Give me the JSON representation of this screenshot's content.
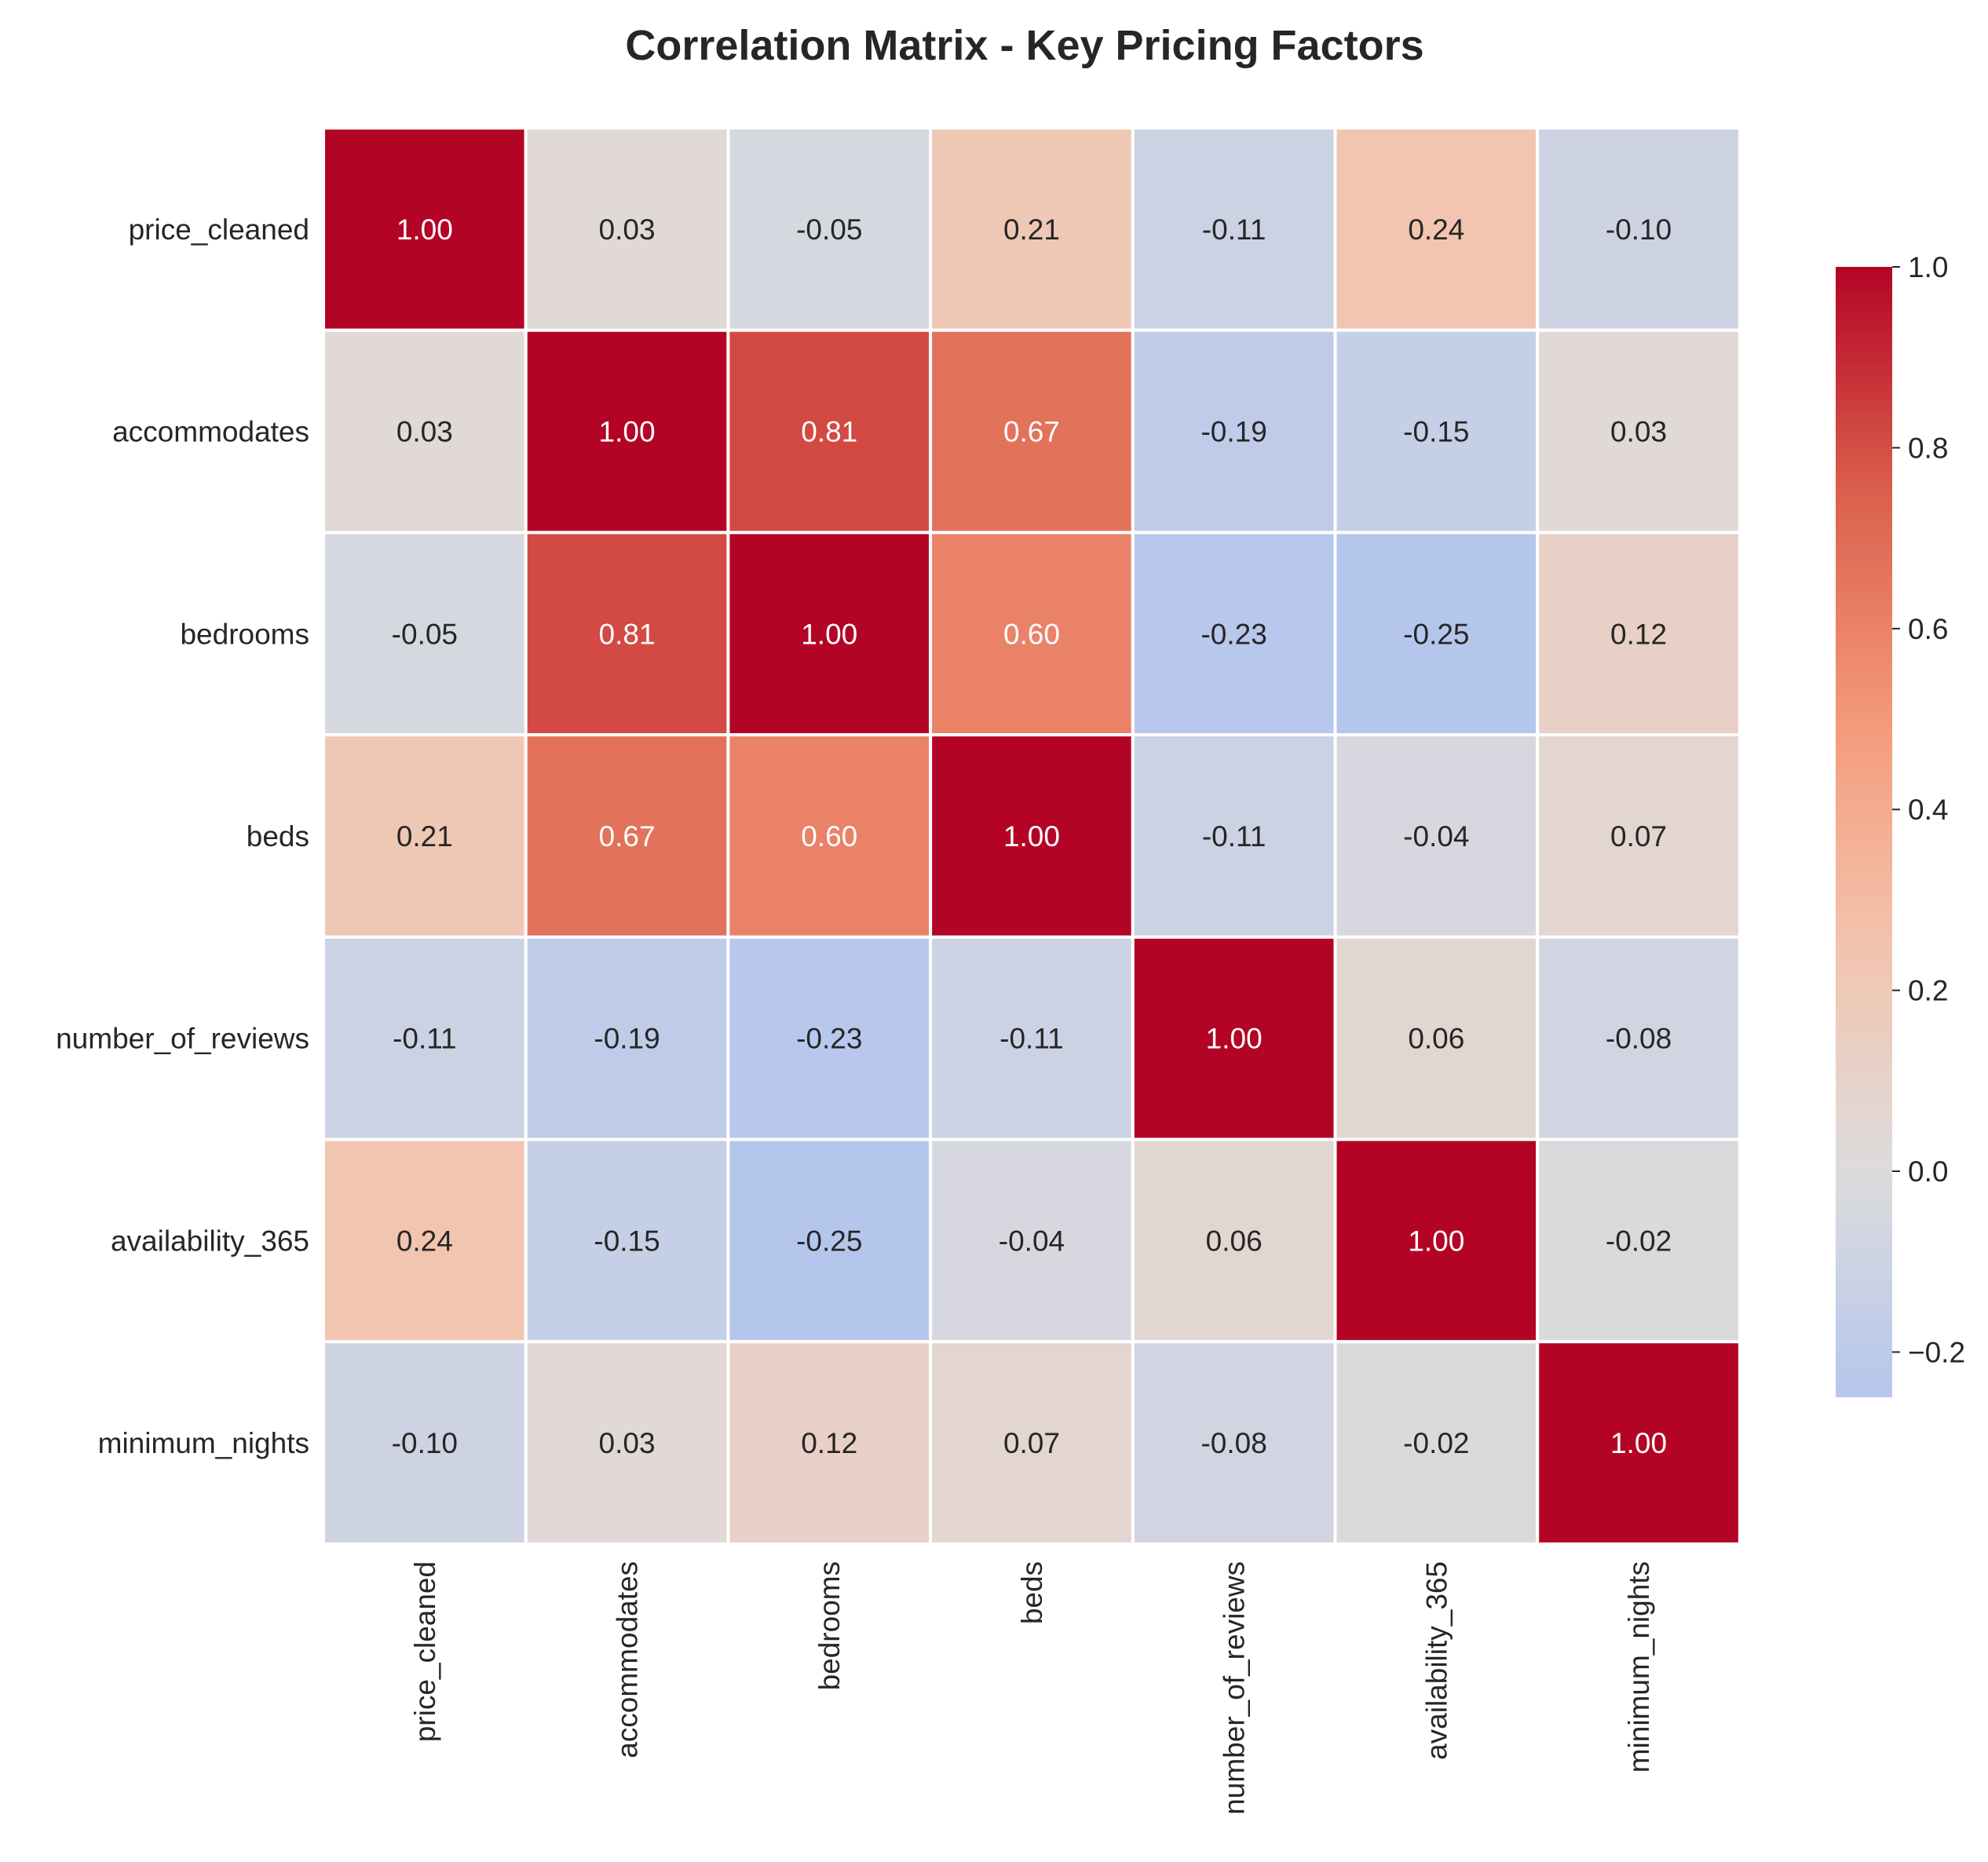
{
  "chart_data": {
    "type": "heatmap",
    "title": "Correlation Matrix - Key Pricing Factors",
    "xlabel": "",
    "ylabel": "",
    "variables": [
      "price_cleaned",
      "accommodates",
      "bedrooms",
      "beds",
      "number_of_reviews",
      "availability_365",
      "minimum_nights"
    ],
    "matrix": [
      [
        1.0,
        0.03,
        -0.05,
        0.21,
        -0.11,
        0.24,
        -0.1
      ],
      [
        0.03,
        1.0,
        0.81,
        0.67,
        -0.19,
        -0.15,
        0.03
      ],
      [
        -0.05,
        0.81,
        1.0,
        0.6,
        -0.23,
        -0.25,
        0.12
      ],
      [
        0.21,
        0.67,
        0.6,
        1.0,
        -0.11,
        -0.04,
        0.07
      ],
      [
        -0.11,
        -0.19,
        -0.23,
        -0.11,
        1.0,
        0.06,
        -0.08
      ],
      [
        0.24,
        -0.15,
        -0.25,
        -0.04,
        0.06,
        1.0,
        -0.02
      ],
      [
        -0.1,
        0.03,
        0.12,
        0.07,
        -0.08,
        -0.02,
        1.0
      ]
    ],
    "labels": [
      [
        "1.00",
        "0.03",
        "-0.05",
        "0.21",
        "-0.11",
        "0.24",
        "-0.10"
      ],
      [
        "0.03",
        "1.00",
        "0.81",
        "0.67",
        "-0.19",
        "-0.15",
        "0.03"
      ],
      [
        "-0.05",
        "0.81",
        "1.00",
        "0.60",
        "-0.23",
        "-0.25",
        "0.12"
      ],
      [
        "0.21",
        "0.67",
        "0.60",
        "1.00",
        "-0.11",
        "-0.04",
        "0.07"
      ],
      [
        "-0.11",
        "-0.19",
        "-0.23",
        "-0.11",
        "1.00",
        "0.06",
        "-0.08"
      ],
      [
        "0.24",
        "-0.15",
        "-0.25",
        "-0.04",
        "0.06",
        "1.00",
        "-0.02"
      ],
      [
        "-0.10",
        "0.03",
        "0.12",
        "0.07",
        "-0.08",
        "-0.02",
        "1.00"
      ]
    ],
    "colorbar": {
      "range": [
        -0.25,
        1.0
      ],
      "ticks": [
        1.0,
        0.8,
        0.6,
        0.4,
        0.2,
        0.0,
        -0.2
      ],
      "tick_labels": [
        "1.0",
        "0.8",
        "0.6",
        "0.4",
        "0.2",
        "0.0",
        "−0.2"
      ],
      "colormap": "coolwarm",
      "center": 0.0
    },
    "colors": {
      "low": "#3b4cc0",
      "mid": "#dddcdc",
      "high": "#b40426",
      "cell_border": "#ffffff",
      "text_dark": "#262626",
      "text_light": "#ffffff"
    },
    "grid": false
  }
}
